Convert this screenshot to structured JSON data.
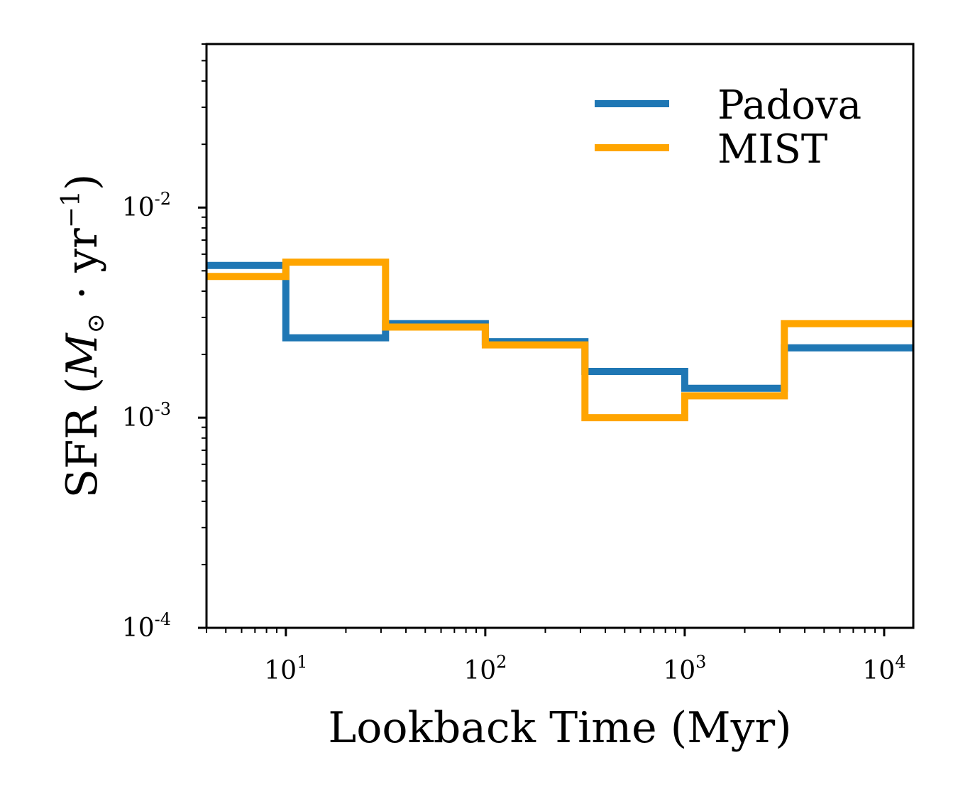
{
  "chart_data": {
    "type": "line",
    "step": "post",
    "xscale": "log",
    "yscale": "log",
    "xlabel": "Lookback Time (Myr)",
    "ylabel": {
      "prefix": "SFR (",
      "m": "M",
      "sun_sub": "⊙",
      "mid": " · yr",
      "exp": "−1",
      "suffix": ")"
    },
    "xlim": [
      4,
      14000
    ],
    "ylim": [
      0.0001,
      0.06
    ],
    "x_ticks": [
      {
        "value": 10,
        "base": "10",
        "exp": "1"
      },
      {
        "value": 100,
        "base": "10",
        "exp": "2"
      },
      {
        "value": 1000,
        "base": "10",
        "exp": "3"
      },
      {
        "value": 10000,
        "base": "10",
        "exp": "4"
      }
    ],
    "y_ticks": [
      {
        "value": 0.0001,
        "base": "10",
        "exp": "-4"
      },
      {
        "value": 0.001,
        "base": "10",
        "exp": "-3"
      },
      {
        "value": 0.01,
        "base": "10",
        "exp": "-2"
      }
    ],
    "bin_edges": [
      4,
      10,
      31.6,
      100,
      316,
      1000,
      3160,
      14000
    ],
    "series": [
      {
        "name": "Padova",
        "color": "#1f77b4",
        "values": [
          0.0053,
          0.0024,
          0.0028,
          0.0023,
          0.00166,
          0.00138,
          0.00215
        ]
      },
      {
        "name": "MIST",
        "color": "#ffa500",
        "values": [
          0.0047,
          0.0055,
          0.0027,
          0.00222,
          0.001,
          0.00127,
          0.0028
        ]
      }
    ],
    "legend": {
      "position": "top-right"
    },
    "grid": false
  }
}
